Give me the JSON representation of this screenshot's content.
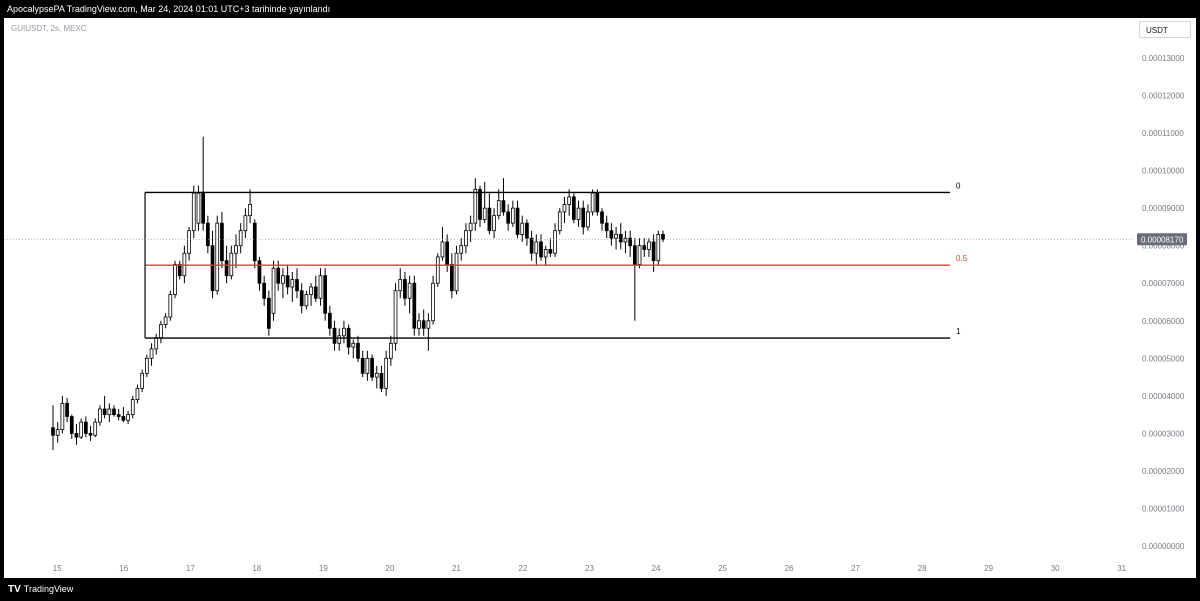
{
  "header": {
    "attribution": "ApocalypsePA TradingView.com, Mar 24, 2024 01:01 UTC+3 tarihinde yayınlandı"
  },
  "symbol": {
    "text": "GUIUSDT, 2s, MEXC"
  },
  "currency": {
    "label": "USDT"
  },
  "footer": {
    "brand": "TradingView",
    "brand_icon": "tradingview-logo-icon"
  },
  "colors": {
    "background": "#ffffff",
    "frame": "#000000",
    "candle_up": "#ffffff",
    "candle_down": "#000000",
    "level_line": "#000000",
    "mid_line": "#e53935",
    "axis_text": "#787b86",
    "price_tag": "#6a6d78"
  },
  "chart_data": {
    "type": "candlestick",
    "symbol": "GUIUSDT",
    "interval": "2s",
    "exchange": "MEXC",
    "x_ticks": [
      "15",
      "16",
      "17",
      "18",
      "19",
      "20",
      "21",
      "22",
      "23",
      "24",
      "25",
      "26",
      "27",
      "28",
      "29",
      "30",
      "31"
    ],
    "x_tick_values": [
      15,
      16,
      17,
      18,
      19,
      20,
      21,
      22,
      23,
      24,
      25,
      26,
      27,
      28,
      29,
      30,
      31
    ],
    "y_ticks": [
      "0.00013000",
      "0.00012000",
      "0.00011000",
      "0.00010000",
      "0.00009000",
      "0.00008000",
      "0.00007000",
      "0.00006000",
      "0.00005000",
      "0.00004000",
      "0.00003000",
      "0.00002000",
      "0.00001000",
      "0.00000000"
    ],
    "y_tick_values": [
      0.00013,
      0.00012,
      0.00011,
      0.0001,
      9e-05,
      8e-05,
      7e-05,
      6e-05,
      5e-05,
      4e-05,
      3e-05,
      2e-05,
      1e-05,
      0
    ],
    "x_range": [
      14.2,
      31.2
    ],
    "y_range": [
      0,
      0.000135
    ],
    "grid": false,
    "current_price": {
      "label": "0.00008170",
      "value": 8.17e-05
    },
    "range_levels": [
      {
        "label": "0",
        "value": 9.42e-05,
        "x_start": 16.32,
        "x_end": 28.42,
        "color": "#000000"
      },
      {
        "label": "0.5",
        "value": 7.48e-05,
        "x_start": 16.32,
        "x_end": 28.42,
        "color": "#e53935"
      },
      {
        "label": "1",
        "value": 5.54e-05,
        "x_start": 16.32,
        "x_end": 28.42,
        "color": "#000000"
      }
    ],
    "range_box_left_x": 16.32,
    "candles_ohlc": [
      [
        3.15e-05,
        3.75e-05,
        2.55e-05,
        2.95e-05
      ],
      [
        2.95e-05,
        3.3e-05,
        2.75e-05,
        3.1e-05
      ],
      [
        3.1e-05,
        4e-05,
        3e-05,
        3.8e-05
      ],
      [
        3.8e-05,
        3.95e-05,
        3.3e-05,
        3.45e-05
      ],
      [
        3.45e-05,
        3.5e-05,
        2.85e-05,
        3e-05
      ],
      [
        3e-05,
        3.25e-05,
        2.7e-05,
        2.9e-05
      ],
      [
        2.9e-05,
        3.4e-05,
        2.85e-05,
        3.3e-05
      ],
      [
        3.3e-05,
        3.45e-05,
        2.9e-05,
        3e-05
      ],
      [
        3e-05,
        3.2e-05,
        2.8e-05,
        2.95e-05
      ],
      [
        2.95e-05,
        3.4e-05,
        2.9e-05,
        3.3e-05
      ],
      [
        3.3e-05,
        3.75e-05,
        3.2e-05,
        3.65e-05
      ],
      [
        3.65e-05,
        4e-05,
        3.4e-05,
        3.5e-05
      ],
      [
        3.5e-05,
        3.8e-05,
        3.3e-05,
        3.65e-05
      ],
      [
        3.65e-05,
        3.75e-05,
        3.45e-05,
        3.5e-05
      ],
      [
        3.5e-05,
        3.65e-05,
        3.35e-05,
        3.45e-05
      ],
      [
        3.45e-05,
        3.7e-05,
        3.3e-05,
        3.35e-05
      ],
      [
        3.35e-05,
        3.6e-05,
        3.25e-05,
        3.5e-05
      ],
      [
        3.5e-05,
        4e-05,
        3.4e-05,
        3.9e-05
      ],
      [
        3.9e-05,
        4.3e-05,
        3.8e-05,
        4.2e-05
      ],
      [
        4.2e-05,
        4.7e-05,
        4.1e-05,
        4.6e-05
      ],
      [
        4.6e-05,
        5.1e-05,
        4.5e-05,
        5e-05
      ],
      [
        5e-05,
        5.4e-05,
        4.8e-05,
        5.25e-05
      ],
      [
        5.25e-05,
        5.65e-05,
        5.1e-05,
        5.55e-05
      ],
      [
        5.55e-05,
        6e-05,
        5.4e-05,
        5.9e-05
      ],
      [
        5.9e-05,
        6.2e-05,
        5.8e-05,
        6.1e-05
      ],
      [
        6.1e-05,
        6.8e-05,
        6e-05,
        6.7e-05
      ],
      [
        6.7e-05,
        7.6e-05,
        6.6e-05,
        7.5e-05
      ],
      [
        7.5e-05,
        7.6e-05,
        7.1e-05,
        7.2e-05
      ],
      [
        7.2e-05,
        8e-05,
        7e-05,
        7.8e-05
      ],
      [
        7.8e-05,
        8.5e-05,
        7.6e-05,
        8.4e-05
      ],
      [
        8.4e-05,
        9.6e-05,
        8.2e-05,
        9.4e-05
      ],
      [
        8.6e-05,
        9.6e-05,
        8.4e-05,
        9.4e-05
      ],
      [
        9.4e-05,
        0.000109,
        8.4e-05,
        8.6e-05
      ],
      [
        8.6e-05,
        8.8e-05,
        7.8e-05,
        8e-05
      ],
      [
        8e-05,
        8.4e-05,
        6.6e-05,
        6.8e-05
      ],
      [
        6.8e-05,
        8.8e-05,
        6.7e-05,
        8.6e-05
      ],
      [
        8.6e-05,
        8.9e-05,
        7.4e-05,
        7.6e-05
      ],
      [
        7.6e-05,
        8e-05,
        7e-05,
        7.2e-05
      ],
      [
        7.2e-05,
        8e-05,
        7.1e-05,
        7.8e-05
      ],
      [
        7.8e-05,
        8.3e-05,
        7.4e-05,
        8e-05
      ],
      [
        8e-05,
        8.6e-05,
        7.8e-05,
        8.4e-05
      ],
      [
        8.4e-05,
        9e-05,
        8.2e-05,
        8.8e-05
      ],
      [
        8.8e-05,
        9.5e-05,
        8.6e-05,
        9.1e-05
      ],
      [
        8.6e-05,
        8.7e-05,
        7.4e-05,
        7.6e-05
      ],
      [
        7.6e-05,
        7.7e-05,
        6.8e-05,
        7e-05
      ],
      [
        7e-05,
        7.2e-05,
        6.4e-05,
        6.6e-05
      ],
      [
        6.6e-05,
        6.8e-05,
        5.6e-05,
        5.8e-05
      ],
      [
        6.2e-05,
        7.6e-05,
        6e-05,
        7.4e-05
      ],
      [
        7.4e-05,
        7.6e-05,
        6.8e-05,
        7e-05
      ],
      [
        7e-05,
        7.4e-05,
        6.6e-05,
        7.2e-05
      ],
      [
        7.2e-05,
        7.5e-05,
        6.7e-05,
        6.9e-05
      ],
      [
        6.9e-05,
        7.3e-05,
        6.5e-05,
        7.1e-05
      ],
      [
        7.1e-05,
        7.4e-05,
        6.6e-05,
        6.8e-05
      ],
      [
        6.8e-05,
        7e-05,
        6.2e-05,
        6.4e-05
      ],
      [
        6.4e-05,
        6.8e-05,
        6.3e-05,
        6.7e-05
      ],
      [
        6.7e-05,
        7e-05,
        6.4e-05,
        6.9e-05
      ],
      [
        6.9e-05,
        7.2e-05,
        6.5e-05,
        6.6e-05
      ],
      [
        6.6e-05,
        7.4e-05,
        6.4e-05,
        7.2e-05
      ],
      [
        7.2e-05,
        7.4e-05,
        6e-05,
        6.2e-05
      ],
      [
        6.2e-05,
        6.4e-05,
        5.6e-05,
        5.8e-05
      ],
      [
        5.8e-05,
        6e-05,
        5.2e-05,
        5.4e-05
      ],
      [
        5.4e-05,
        5.8e-05,
        5.2e-05,
        5.6e-05
      ],
      [
        5.6e-05,
        6e-05,
        5.4e-05,
        5.8e-05
      ],
      [
        5.8e-05,
        5.9e-05,
        5.1e-05,
        5.3e-05
      ],
      [
        5.3e-05,
        5.5e-05,
        5e-05,
        5.4e-05
      ],
      [
        5.4e-05,
        5.6e-05,
        4.9e-05,
        5e-05
      ],
      [
        5e-05,
        5.2e-05,
        4.5e-05,
        4.6e-05
      ],
      [
        4.6e-05,
        5.2e-05,
        4.4e-05,
        5e-05
      ],
      [
        5e-05,
        5.1e-05,
        4.4e-05,
        4.5e-05
      ],
      [
        4.5e-05,
        4.8e-05,
        4.2e-05,
        4.6e-05
      ],
      [
        4.6e-05,
        4.8e-05,
        4.1e-05,
        4.2e-05
      ],
      [
        4.2e-05,
        5.2e-05,
        4e-05,
        5e-05
      ],
      [
        5e-05,
        5.6e-05,
        4.8e-05,
        5.4e-05
      ],
      [
        5.4e-05,
        7e-05,
        5.2e-05,
        6.8e-05
      ],
      [
        6.8e-05,
        7.4e-05,
        6.6e-05,
        7.1e-05
      ],
      [
        7.1e-05,
        7.3e-05,
        6.4e-05,
        6.6e-05
      ],
      [
        6.6e-05,
        7.2e-05,
        6.2e-05,
        7e-05
      ],
      [
        7e-05,
        7.2e-05,
        5.6e-05,
        5.8e-05
      ],
      [
        5.8e-05,
        6.2e-05,
        5.6e-05,
        6e-05
      ],
      [
        6e-05,
        6.3e-05,
        5.6e-05,
        5.8e-05
      ],
      [
        5.8e-05,
        6.2e-05,
        5.2e-05,
        6e-05
      ],
      [
        6e-05,
        7.2e-05,
        5.9e-05,
        7e-05
      ],
      [
        7e-05,
        7.8e-05,
        6.9e-05,
        7.7e-05
      ],
      [
        7.7e-05,
        8.5e-05,
        7.6e-05,
        8.1e-05
      ],
      [
        8.1e-05,
        8.3e-05,
        7.3e-05,
        7.5e-05
      ],
      [
        7.5e-05,
        7.8e-05,
        6.6e-05,
        6.8e-05
      ],
      [
        6.8e-05,
        8e-05,
        6.7e-05,
        7.8e-05
      ],
      [
        7.8e-05,
        8.2e-05,
        7.6e-05,
        8e-05
      ],
      [
        8e-05,
        8.6e-05,
        7.8e-05,
        8.4e-05
      ],
      [
        8.4e-05,
        8.8e-05,
        8.1e-05,
        8.6e-05
      ],
      [
        8.6e-05,
        9.8e-05,
        8.4e-05,
        9.5e-05
      ],
      [
        9.5e-05,
        9.6e-05,
        8.5e-05,
        8.7e-05
      ],
      [
        8.7e-05,
        9.7e-05,
        8.6e-05,
        9e-05
      ],
      [
        9e-05,
        9.4e-05,
        8.3e-05,
        8.4e-05
      ],
      [
        8.4e-05,
        9e-05,
        8.2e-05,
        8.8e-05
      ],
      [
        8.8e-05,
        9.5e-05,
        8.7e-05,
        9.2e-05
      ],
      [
        9.2e-05,
        9.8e-05,
        8.8e-05,
        8.9e-05
      ],
      [
        8.9e-05,
        9.1e-05,
        8.4e-05,
        8.6e-05
      ],
      [
        8.6e-05,
        9.2e-05,
        8.5e-05,
        9e-05
      ],
      [
        9e-05,
        9.2e-05,
        8.2e-05,
        8.3e-05
      ],
      [
        8.3e-05,
        8.8e-05,
        8.1e-05,
        8.6e-05
      ],
      [
        8.6e-05,
        8.7e-05,
        8e-05,
        8.2e-05
      ],
      [
        8.2e-05,
        8.4e-05,
        7.6e-05,
        7.8e-05
      ],
      [
        7.8e-05,
        8.3e-05,
        7.5e-05,
        8.1e-05
      ],
      [
        8.1e-05,
        8.3e-05,
        7.6e-05,
        7.7e-05
      ],
      [
        7.7e-05,
        8e-05,
        7.5e-05,
        7.9e-05
      ],
      [
        7.9e-05,
        8.2e-05,
        7.7e-05,
        7.8e-05
      ],
      [
        7.8e-05,
        8.6e-05,
        7.7e-05,
        8.4e-05
      ],
      [
        8.4e-05,
        9e-05,
        8.3e-05,
        8.9e-05
      ],
      [
        8.9e-05,
        9.3e-05,
        8.6e-05,
        9.1e-05
      ],
      [
        9.1e-05,
        9.5e-05,
        8.8e-05,
        9.3e-05
      ],
      [
        9.3e-05,
        9.4e-05,
        8.6e-05,
        8.7e-05
      ],
      [
        8.7e-05,
        9.2e-05,
        8.5e-05,
        9e-05
      ],
      [
        9e-05,
        9.2e-05,
        8.3e-05,
        8.5e-05
      ],
      [
        8.5e-05,
        9.1e-05,
        8.4e-05,
        8.9e-05
      ],
      [
        8.9e-05,
        9.5e-05,
        8.8e-05,
        9.4e-05
      ],
      [
        9.4e-05,
        9.5e-05,
        8.8e-05,
        8.9e-05
      ],
      [
        8.9e-05,
        9e-05,
        8.4e-05,
        8.6e-05
      ],
      [
        8.6e-05,
        8.8e-05,
        8.2e-05,
        8.4e-05
      ],
      [
        8.4e-05,
        8.6e-05,
        8e-05,
        8.2e-05
      ],
      [
        8.2e-05,
        8.5e-05,
        7.9e-05,
        8.3e-05
      ],
      [
        8.3e-05,
        8.6e-05,
        7.9e-05,
        8.1e-05
      ],
      [
        8.1e-05,
        8.4e-05,
        7.8e-05,
        8.2e-05
      ],
      [
        8.2e-05,
        8.4e-05,
        7.7e-05,
        8e-05
      ],
      [
        8e-05,
        8.2e-05,
        6e-05,
        7.5e-05
      ],
      [
        7.5e-05,
        8.2e-05,
        7.4e-05,
        8e-05
      ],
      [
        8e-05,
        8.2e-05,
        7.7e-05,
        7.9e-05
      ],
      [
        7.9e-05,
        8.2e-05,
        7.7e-05,
        8.1e-05
      ],
      [
        8.1e-05,
        8.3e-05,
        7.3e-05,
        7.6e-05
      ],
      [
        7.6e-05,
        8.4e-05,
        7.5e-05,
        8.3e-05
      ],
      [
        8.3e-05,
        8.4e-05,
        8.1e-05,
        8.17e-05
      ]
    ]
  }
}
